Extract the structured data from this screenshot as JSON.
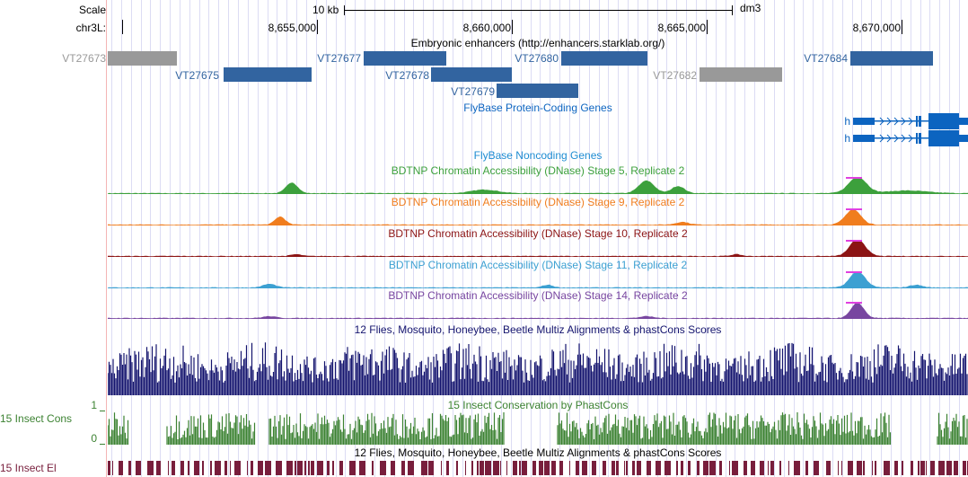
{
  "ruler": {
    "scale_label": "Scale",
    "scale_bar_label": "10 kb",
    "assembly": "dm3",
    "chrom_label": "chr3L:",
    "positions": [
      "8,655,000",
      "8,660,000",
      "8,665,000",
      "8,670,000"
    ]
  },
  "enhancers": {
    "title": "Embryonic enhancers (http://enhancers.starklab.org/)",
    "features": [
      {
        "name": "VT27673",
        "color": "#999999"
      },
      {
        "name": "VT27675",
        "color": "#3264a0"
      },
      {
        "name": "VT27677",
        "color": "#3264a0"
      },
      {
        "name": "VT27678",
        "color": "#3264a0"
      },
      {
        "name": "VT27679",
        "color": "#3264a0"
      },
      {
        "name": "VT27680",
        "color": "#3264a0"
      },
      {
        "name": "VT27682",
        "color": "#999999"
      },
      {
        "name": "VT27684",
        "color": "#3264a0"
      }
    ]
  },
  "coding_genes": {
    "title": "FlyBase Protein-Coding Genes",
    "genes": [
      "h",
      "h"
    ],
    "color": "#0c64c0"
  },
  "noncoding_genes": {
    "title": "FlyBase Noncoding Genes",
    "color": "#1e8cd2"
  },
  "dnase_tracks": [
    {
      "title": "BDTNP Chromatin Accessibility (DNase) Stage 5, Replicate 2",
      "color": "#3ca03c"
    },
    {
      "title": "BDTNP Chromatin Accessibility (DNase) Stage 9, Replicate 2",
      "color": "#f07d1e"
    },
    {
      "title": "BDTNP Chromatin Accessibility (DNase) Stage 10, Replicate 2",
      "color": "#8c1414"
    },
    {
      "title": "BDTNP Chromatin Accessibility (DNase) Stage 11, Replicate 2",
      "color": "#3ca0d2"
    },
    {
      "title": "BDTNP Chromatin Accessibility (DNase) Stage 14, Replicate 2",
      "color": "#7846a0"
    }
  ],
  "conservation": {
    "multiz_title": "12 Flies, Mosquito, Honeybee, Beetle Multiz Alignments & phastCons Scores",
    "multiz_color": "#14146e",
    "insect_title": "15 Insect Conservation by PhastCons",
    "insect_side_label": "15 Insect Cons",
    "insect_color": "#3c8232",
    "ymax": "1",
    "ymin": "0",
    "elements_title": "12 Flies, Mosquito, Honeybee, Beetle Multiz Alignments & phastCons Scores",
    "elements_side_label": "15 Insect El",
    "elements_color": "#781e3c"
  }
}
